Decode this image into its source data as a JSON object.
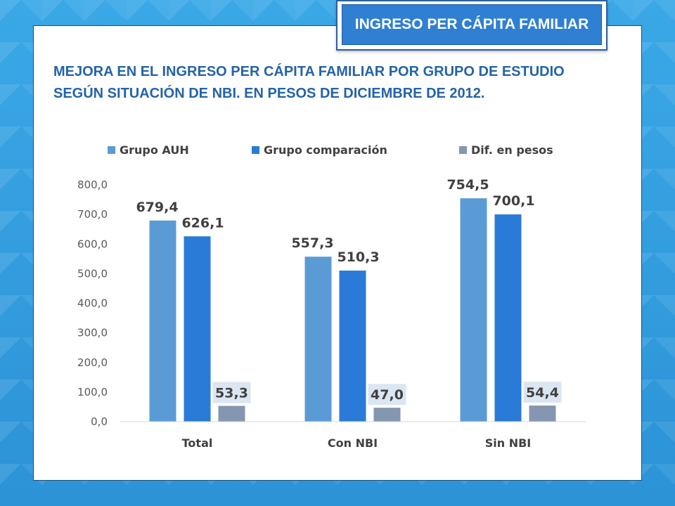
{
  "header": {
    "tab_title": "INGRESO PER CÁPITA FAMILIAR"
  },
  "subtitle_lines": [
    "MEJORA EN EL INGRESO PER CÁPITA FAMILIAR POR GRUPO DE ESTUDIO",
    "SEGÚN SITUACIÓN DE NBI. EN PESOS DE DICIEMBRE DE 2012."
  ],
  "colors": {
    "auh": "#5b9bd5",
    "comparacion": "#2a7ad8",
    "dif": "#8496b0",
    "dif_label_bg": "#dce6f2"
  },
  "chart_data": {
    "type": "bar",
    "title": "MEJORA EN EL INGRESO PER CÁPITA FAMILIAR POR GRUPO DE ESTUDIO SEGÚN SITUACIÓN DE NBI. EN PESOS DE DICIEMBRE DE 2012.",
    "categories": [
      "Total",
      "Con NBI",
      "Sin NBI"
    ],
    "series": [
      {
        "name": "Grupo AUH",
        "values": [
          679.4,
          557.3,
          754.5
        ],
        "labels": [
          "679,4",
          "557,3",
          "754,5"
        ]
      },
      {
        "name": "Grupo comparación",
        "values": [
          626.1,
          510.3,
          700.1
        ],
        "labels": [
          "626,1",
          "510,3",
          "700,1"
        ]
      },
      {
        "name": "Dif. en pesos",
        "values": [
          53.3,
          47.0,
          54.4
        ],
        "labels": [
          "53,3",
          "47,0",
          "54,4"
        ]
      }
    ],
    "ylim": [
      0,
      800
    ],
    "yticks": [
      "0,0",
      "100,0",
      "200,0",
      "300,0",
      "400,0",
      "500,0",
      "600,0",
      "700,0",
      "800,0"
    ],
    "grid": false,
    "legend": "top"
  }
}
